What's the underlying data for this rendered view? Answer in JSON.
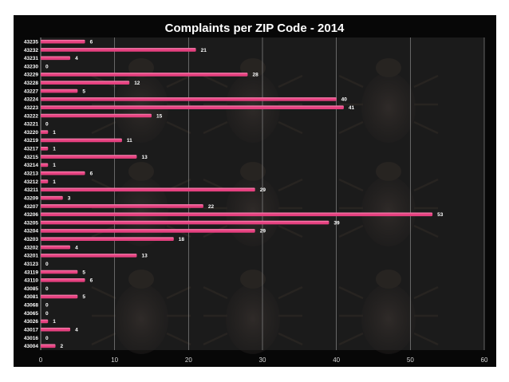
{
  "colors": {
    "background": "#070707",
    "plot_background": "#1b1b1b",
    "bar": "#e5407f",
    "bar_highlight": "#ff8ab8",
    "gridline": "#8a8a8a",
    "text": "#ffffff"
  },
  "chart_data": {
    "type": "bar",
    "orientation": "horizontal",
    "title": "Complaints per ZIP Code - 2014",
    "xlabel": "",
    "ylabel": "",
    "xlim": [
      0,
      60
    ],
    "xticks": [
      0,
      10,
      20,
      30,
      40,
      50,
      60
    ],
    "grid": "vertical",
    "legend": "none",
    "categories": [
      "43235",
      "43232",
      "43231",
      "43230",
      "43229",
      "43228",
      "43227",
      "43224",
      "43223",
      "43222",
      "43221",
      "43220",
      "43219",
      "43217",
      "43215",
      "43214",
      "43213",
      "43212",
      "43211",
      "43209",
      "43207",
      "43206",
      "43205",
      "43204",
      "43203",
      "43202",
      "43201",
      "43123",
      "43119",
      "43110",
      "43085",
      "43081",
      "43068",
      "43065",
      "43026",
      "43017",
      "43016",
      "43004"
    ],
    "values": [
      6,
      21,
      4,
      0,
      28,
      12,
      5,
      40,
      41,
      15,
      0,
      1,
      11,
      1,
      13,
      1,
      6,
      1,
      29,
      3,
      22,
      53,
      39,
      29,
      18,
      4,
      13,
      0,
      5,
      6,
      0,
      5,
      0,
      0,
      1,
      4,
      0,
      2
    ]
  }
}
